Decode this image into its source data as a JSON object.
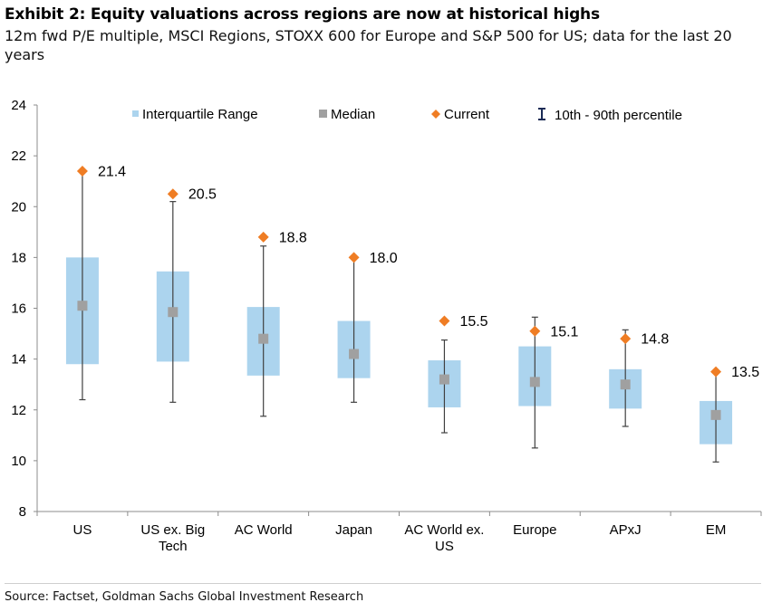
{
  "header": {
    "title": "Exhibit 2: Equity valuations across regions are now at historical highs",
    "subtitle": "12m fwd P/E multiple, MSCI Regions, STOXX 600 for Europe and S&P 500 for US; data for the last 20 years"
  },
  "footer": {
    "source": "Source: Factset, Goldman Sachs Global Investment Research"
  },
  "chart_data": {
    "type": "box",
    "categories": [
      [
        "US"
      ],
      [
        "US ex. Big",
        "Tech"
      ],
      [
        "AC World"
      ],
      [
        "Japan"
      ],
      [
        "AC World ex.",
        "US"
      ],
      [
        "Europe"
      ],
      [
        "APxJ"
      ],
      [
        "EM"
      ]
    ],
    "series": [
      {
        "name": "Interquartile Range",
        "color": "#acd4ee",
        "q1": [
          13.8,
          13.9,
          13.35,
          13.25,
          12.1,
          12.15,
          12.05,
          10.65
        ],
        "q3": [
          18.0,
          17.45,
          16.05,
          15.5,
          13.95,
          14.5,
          13.6,
          12.35
        ]
      },
      {
        "name": "Median",
        "color": "#a0a0a0",
        "values": [
          16.1,
          15.85,
          14.8,
          14.2,
          13.2,
          13.1,
          13.0,
          11.8
        ]
      },
      {
        "name": "Current",
        "color": "#ef7d24",
        "values": [
          21.4,
          20.5,
          18.8,
          18.0,
          15.5,
          15.1,
          14.8,
          13.5
        ],
        "labels": [
          "21.4",
          "20.5",
          "18.8",
          "18.0",
          "15.5",
          "15.1",
          "14.8",
          "13.5"
        ]
      },
      {
        "name": "10th - 90th percentile",
        "color": "#404040",
        "p10": [
          12.4,
          12.3,
          11.75,
          12.3,
          11.1,
          10.5,
          11.35,
          9.95
        ],
        "p90": [
          21.4,
          20.2,
          18.45,
          18.0,
          14.75,
          15.65,
          15.15,
          13.5
        ]
      }
    ],
    "yticks": [
      "8",
      "10",
      "12",
      "14",
      "16",
      "18",
      "20",
      "22",
      "24"
    ],
    "ylim": [
      8,
      24
    ],
    "xlabel": "",
    "ylabel": "",
    "grid": false,
    "legend": "top"
  }
}
